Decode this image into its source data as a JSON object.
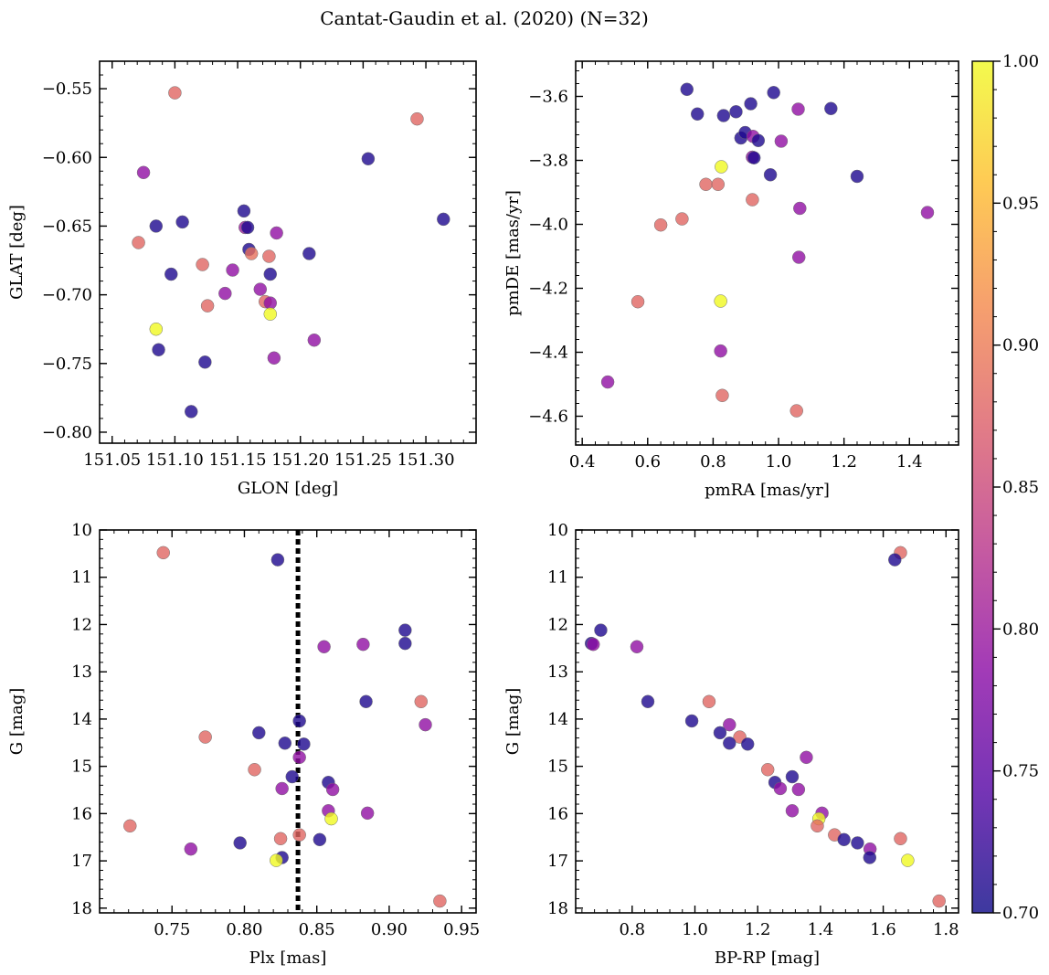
{
  "figure_title": "Cantat-Gaudin et al. (2020) (N=32)",
  "colorbar": {
    "range": [
      0.7,
      1.0
    ],
    "ticks": [
      "0.70",
      "0.75",
      "0.80",
      "0.85",
      "0.90",
      "0.95",
      "1.00"
    ],
    "colormap": [
      "#0d0887",
      "#5302a3",
      "#8b0aa5",
      "#b83289",
      "#db5c68",
      "#f48849",
      "#febd2a",
      "#f0f921"
    ]
  },
  "chart_data": [
    {
      "type": "scatter",
      "name": "glon-glat",
      "xlabel": "GLON [deg]",
      "ylabel": "GLAT [deg]",
      "xlim": [
        151.04,
        151.34
      ],
      "ylim": [
        -0.808,
        -0.53
      ],
      "xticks": [
        "151.05",
        "151.10",
        "151.15",
        "151.20",
        "151.25",
        "151.30"
      ],
      "yticks": [
        "−0.55",
        "−0.60",
        "−0.65",
        "−0.70",
        "−0.75",
        "−0.80"
      ],
      "invert_y": false,
      "vline": null,
      "points": [
        {
          "x": 151.1,
          "y": -0.553,
          "c": 0.88
        },
        {
          "x": 151.293,
          "y": -0.572,
          "c": 0.88
        },
        {
          "x": 151.075,
          "y": -0.611,
          "c": 0.79
        },
        {
          "x": 151.254,
          "y": -0.601,
          "c": 0.71
        },
        {
          "x": 151.085,
          "y": -0.65,
          "c": 0.71
        },
        {
          "x": 151.106,
          "y": -0.647,
          "c": 0.71
        },
        {
          "x": 151.071,
          "y": -0.662,
          "c": 0.88
        },
        {
          "x": 151.155,
          "y": -0.639,
          "c": 0.71
        },
        {
          "x": 151.156,
          "y": -0.651,
          "c": 0.8
        },
        {
          "x": 151.158,
          "y": -0.651,
          "c": 0.71
        },
        {
          "x": 151.181,
          "y": -0.655,
          "c": 0.79
        },
        {
          "x": 151.314,
          "y": -0.645,
          "c": 0.71
        },
        {
          "x": 151.159,
          "y": -0.667,
          "c": 0.71
        },
        {
          "x": 151.161,
          "y": -0.67,
          "c": 0.89
        },
        {
          "x": 151.175,
          "y": -0.672,
          "c": 0.88
        },
        {
          "x": 151.207,
          "y": -0.67,
          "c": 0.71
        },
        {
          "x": 151.122,
          "y": -0.678,
          "c": 0.88
        },
        {
          "x": 151.097,
          "y": -0.685,
          "c": 0.71
        },
        {
          "x": 151.146,
          "y": -0.682,
          "c": 0.79
        },
        {
          "x": 151.176,
          "y": -0.685,
          "c": 0.71
        },
        {
          "x": 151.14,
          "y": -0.699,
          "c": 0.79
        },
        {
          "x": 151.168,
          "y": -0.696,
          "c": 0.79
        },
        {
          "x": 151.126,
          "y": -0.708,
          "c": 0.88
        },
        {
          "x": 151.172,
          "y": -0.705,
          "c": 0.88
        },
        {
          "x": 151.176,
          "y": -0.706,
          "c": 0.79
        },
        {
          "x": 151.176,
          "y": -0.714,
          "c": 1.0
        },
        {
          "x": 151.085,
          "y": -0.725,
          "c": 1.0
        },
        {
          "x": 151.211,
          "y": -0.733,
          "c": 0.79
        },
        {
          "x": 151.087,
          "y": -0.74,
          "c": 0.71
        },
        {
          "x": 151.179,
          "y": -0.746,
          "c": 0.79
        },
        {
          "x": 151.124,
          "y": -0.749,
          "c": 0.71
        },
        {
          "x": 151.113,
          "y": -0.785,
          "c": 0.71
        }
      ]
    },
    {
      "type": "scatter",
      "name": "pmra-pmde",
      "xlabel": "pmRA [mas/yr]",
      "ylabel": "pmDE [mas/yr]",
      "xlim": [
        0.38,
        1.55
      ],
      "ylim": [
        -4.69,
        -3.49
      ],
      "xticks": [
        "0.4",
        "0.6",
        "0.8",
        "1.0",
        "1.2",
        "1.4"
      ],
      "yticks": [
        "−3.6",
        "−3.8",
        "−4.0",
        "−4.2",
        "−4.4",
        "−4.6"
      ],
      "invert_y": false,
      "vline": null,
      "points": [
        {
          "x": 0.72,
          "y": -3.578,
          "c": 0.71
        },
        {
          "x": 0.985,
          "y": -3.588,
          "c": 0.71
        },
        {
          "x": 0.752,
          "y": -3.655,
          "c": 0.71
        },
        {
          "x": 0.832,
          "y": -3.66,
          "c": 0.71
        },
        {
          "x": 0.87,
          "y": -3.648,
          "c": 0.71
        },
        {
          "x": 0.915,
          "y": -3.623,
          "c": 0.71
        },
        {
          "x": 1.16,
          "y": -3.638,
          "c": 0.71
        },
        {
          "x": 1.06,
          "y": -3.64,
          "c": 0.79
        },
        {
          "x": 0.885,
          "y": -3.73,
          "c": 0.71
        },
        {
          "x": 0.898,
          "y": -3.713,
          "c": 0.71
        },
        {
          "x": 0.922,
          "y": -3.725,
          "c": 0.79
        },
        {
          "x": 0.938,
          "y": -3.738,
          "c": 0.71
        },
        {
          "x": 1.008,
          "y": -3.74,
          "c": 0.79
        },
        {
          "x": 0.92,
          "y": -3.79,
          "c": 0.79
        },
        {
          "x": 0.925,
          "y": -3.792,
          "c": 0.71
        },
        {
          "x": 0.975,
          "y": -3.845,
          "c": 0.71
        },
        {
          "x": 1.24,
          "y": -3.85,
          "c": 0.71
        },
        {
          "x": 0.825,
          "y": -3.82,
          "c": 1.0
        },
        {
          "x": 0.778,
          "y": -3.875,
          "c": 0.88
        },
        {
          "x": 0.815,
          "y": -3.875,
          "c": 0.88
        },
        {
          "x": 0.92,
          "y": -3.923,
          "c": 0.88
        },
        {
          "x": 1.065,
          "y": -3.95,
          "c": 0.79
        },
        {
          "x": 1.455,
          "y": -3.963,
          "c": 0.79
        },
        {
          "x": 0.705,
          "y": -3.983,
          "c": 0.88
        },
        {
          "x": 0.64,
          "y": -4.002,
          "c": 0.88
        },
        {
          "x": 1.062,
          "y": -4.103,
          "c": 0.79
        },
        {
          "x": 0.57,
          "y": -4.242,
          "c": 0.88
        },
        {
          "x": 0.823,
          "y": -4.24,
          "c": 1.0
        },
        {
          "x": 0.823,
          "y": -4.396,
          "c": 0.79
        },
        {
          "x": 0.478,
          "y": -4.493,
          "c": 0.79
        },
        {
          "x": 0.828,
          "y": -4.535,
          "c": 0.88
        },
        {
          "x": 1.055,
          "y": -4.583,
          "c": 0.88
        }
      ]
    },
    {
      "type": "scatter",
      "name": "plx-g",
      "xlabel": "Plx [mas]",
      "ylabel": "G [mag]",
      "xlim": [
        0.7,
        0.96
      ],
      "ylim": [
        10.0,
        18.1
      ],
      "xticks": [
        "0.75",
        "0.80",
        "0.85",
        "0.90",
        "0.95"
      ],
      "yticks": [
        "10",
        "11",
        "12",
        "13",
        "14",
        "15",
        "16",
        "17",
        "18"
      ],
      "invert_y": true,
      "vline": 0.837,
      "points": [
        {
          "x": 0.744,
          "y": 10.48,
          "c": 0.88
        },
        {
          "x": 0.823,
          "y": 10.63,
          "c": 0.71
        },
        {
          "x": 0.911,
          "y": 12.12,
          "c": 0.71
        },
        {
          "x": 0.911,
          "y": 12.4,
          "c": 0.71
        },
        {
          "x": 0.855,
          "y": 12.47,
          "c": 0.79
        },
        {
          "x": 0.882,
          "y": 12.42,
          "c": 0.79
        },
        {
          "x": 0.884,
          "y": 13.63,
          "c": 0.71
        },
        {
          "x": 0.922,
          "y": 13.63,
          "c": 0.88
        },
        {
          "x": 0.838,
          "y": 14.04,
          "c": 0.71
        },
        {
          "x": 0.925,
          "y": 14.12,
          "c": 0.79
        },
        {
          "x": 0.773,
          "y": 14.38,
          "c": 0.88
        },
        {
          "x": 0.81,
          "y": 14.29,
          "c": 0.71
        },
        {
          "x": 0.828,
          "y": 14.51,
          "c": 0.71
        },
        {
          "x": 0.841,
          "y": 14.53,
          "c": 0.71
        },
        {
          "x": 0.838,
          "y": 14.81,
          "c": 0.79
        },
        {
          "x": 0.807,
          "y": 15.07,
          "c": 0.88
        },
        {
          "x": 0.833,
          "y": 15.22,
          "c": 0.71
        },
        {
          "x": 0.858,
          "y": 15.34,
          "c": 0.71
        },
        {
          "x": 0.826,
          "y": 15.47,
          "c": 0.79
        },
        {
          "x": 0.861,
          "y": 15.49,
          "c": 0.79
        },
        {
          "x": 0.858,
          "y": 15.94,
          "c": 0.79
        },
        {
          "x": 0.885,
          "y": 15.99,
          "c": 0.79
        },
        {
          "x": 0.86,
          "y": 16.11,
          "c": 1.0
        },
        {
          "x": 0.721,
          "y": 16.26,
          "c": 0.88
        },
        {
          "x": 0.838,
          "y": 16.45,
          "c": 0.88
        },
        {
          "x": 0.825,
          "y": 16.53,
          "c": 0.88
        },
        {
          "x": 0.852,
          "y": 16.55,
          "c": 0.71
        },
        {
          "x": 0.797,
          "y": 16.62,
          "c": 0.71
        },
        {
          "x": 0.763,
          "y": 16.75,
          "c": 0.79
        },
        {
          "x": 0.826,
          "y": 16.93,
          "c": 0.71
        },
        {
          "x": 0.822,
          "y": 16.99,
          "c": 1.0
        },
        {
          "x": 0.935,
          "y": 17.85,
          "c": 0.88
        }
      ]
    },
    {
      "type": "scatter",
      "name": "color-g",
      "xlabel": "BP-RP [mag]",
      "ylabel": "G [mag]",
      "xlim": [
        0.62,
        1.84
      ],
      "ylim": [
        10.0,
        18.1
      ],
      "xticks": [
        "0.8",
        "1.0",
        "1.2",
        "1.4",
        "1.6",
        "1.8"
      ],
      "yticks": [
        "10",
        "11",
        "12",
        "13",
        "14",
        "15",
        "16",
        "17",
        "18"
      ],
      "invert_y": true,
      "vline": null,
      "points": [
        {
          "x": 1.655,
          "y": 10.48,
          "c": 0.88
        },
        {
          "x": 1.637,
          "y": 10.63,
          "c": 0.71
        },
        {
          "x": 0.7,
          "y": 12.12,
          "c": 0.71
        },
        {
          "x": 0.67,
          "y": 12.4,
          "c": 0.71
        },
        {
          "x": 0.676,
          "y": 12.42,
          "c": 0.79
        },
        {
          "x": 0.815,
          "y": 12.47,
          "c": 0.79
        },
        {
          "x": 0.85,
          "y": 13.63,
          "c": 0.71
        },
        {
          "x": 1.045,
          "y": 13.63,
          "c": 0.88
        },
        {
          "x": 0.99,
          "y": 14.04,
          "c": 0.71
        },
        {
          "x": 1.11,
          "y": 14.12,
          "c": 0.79
        },
        {
          "x": 1.08,
          "y": 14.29,
          "c": 0.71
        },
        {
          "x": 1.143,
          "y": 14.38,
          "c": 0.88
        },
        {
          "x": 1.11,
          "y": 14.51,
          "c": 0.71
        },
        {
          "x": 1.168,
          "y": 14.53,
          "c": 0.71
        },
        {
          "x": 1.355,
          "y": 14.81,
          "c": 0.79
        },
        {
          "x": 1.232,
          "y": 15.07,
          "c": 0.88
        },
        {
          "x": 1.31,
          "y": 15.22,
          "c": 0.71
        },
        {
          "x": 1.255,
          "y": 15.34,
          "c": 0.71
        },
        {
          "x": 1.272,
          "y": 15.47,
          "c": 0.79
        },
        {
          "x": 1.33,
          "y": 15.49,
          "c": 0.79
        },
        {
          "x": 1.31,
          "y": 15.94,
          "c": 0.79
        },
        {
          "x": 1.405,
          "y": 15.99,
          "c": 0.79
        },
        {
          "x": 1.395,
          "y": 16.11,
          "c": 1.0
        },
        {
          "x": 1.39,
          "y": 16.26,
          "c": 0.88
        },
        {
          "x": 1.445,
          "y": 16.45,
          "c": 0.88
        },
        {
          "x": 1.475,
          "y": 16.55,
          "c": 0.71
        },
        {
          "x": 1.655,
          "y": 16.53,
          "c": 0.88
        },
        {
          "x": 1.518,
          "y": 16.62,
          "c": 0.71
        },
        {
          "x": 1.558,
          "y": 16.75,
          "c": 0.79
        },
        {
          "x": 1.557,
          "y": 16.93,
          "c": 0.71
        },
        {
          "x": 1.678,
          "y": 16.99,
          "c": 1.0
        },
        {
          "x": 1.778,
          "y": 17.85,
          "c": 0.88
        }
      ]
    }
  ]
}
